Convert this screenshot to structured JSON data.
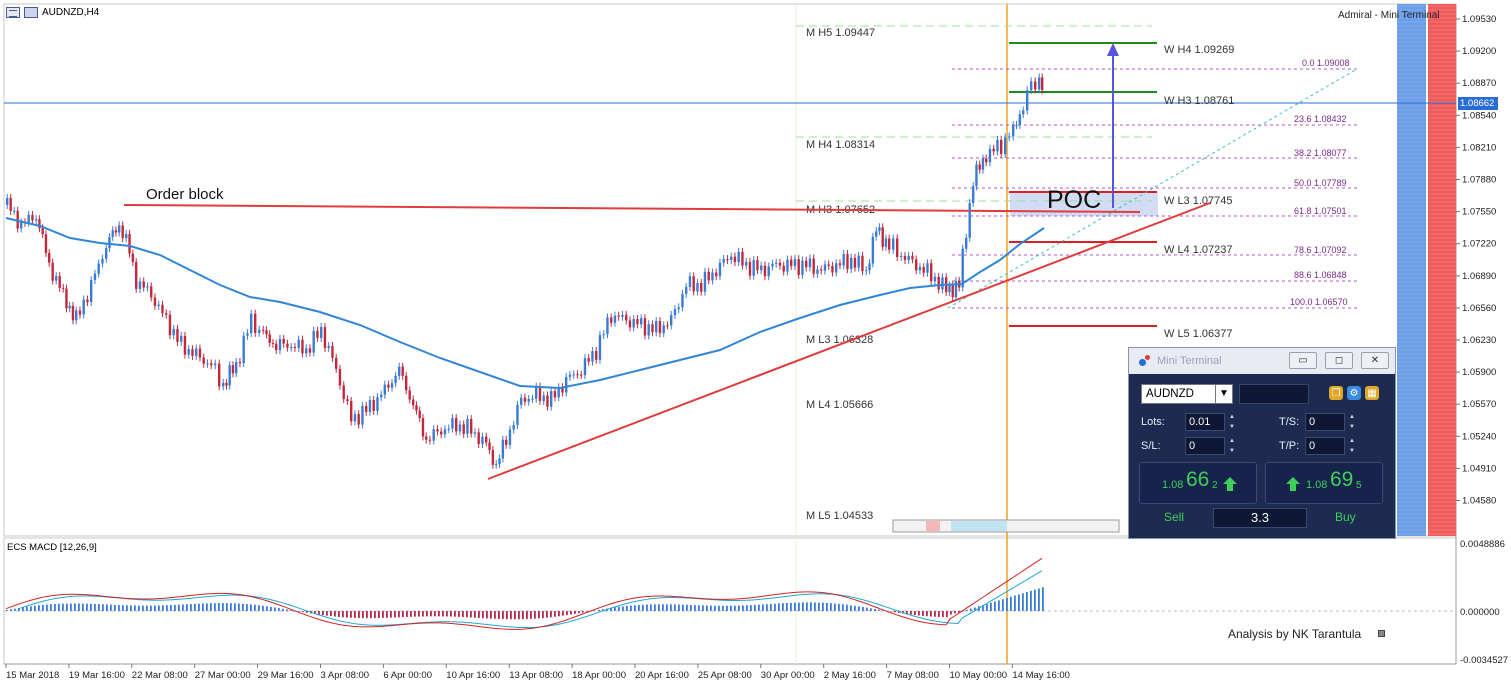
{
  "header": {
    "symbol_timeframe": "AUDNZD,H4",
    "broker": "Admiral - Mini Terminal"
  },
  "price_axis": {
    "labels": [
      "1.09530",
      "1.09200",
      "1.08870",
      "1.08540",
      "1.08210",
      "1.07880",
      "1.07550",
      "1.07220",
      "1.06890",
      "1.06560",
      "1.06230",
      "1.05900",
      "1.05570",
      "1.05240",
      "1.04910",
      "1.04580"
    ],
    "current_price": "1.08662"
  },
  "macd_axis": {
    "labels": [
      "0.0048886",
      "0.000000",
      "-0.0034527"
    ]
  },
  "time_axis": {
    "labels": [
      "15 Mar 2018",
      "19 Mar 16:00",
      "22 Mar 08:00",
      "27 Mar 00:00",
      "29 Mar 16:00",
      "3 Apr 08:00",
      "6 Apr 00:00",
      "10 Apr 16:00",
      "13 Apr 08:00",
      "18 Apr 00:00",
      "20 Apr 16:00",
      "25 Apr 08:00",
      "30 Apr 00:00",
      "2 May 16:00",
      "7 May 08:00",
      "10 May 00:00",
      "14 May 16:00"
    ]
  },
  "annotations": {
    "order_block": "Order block",
    "poc": "POC",
    "credit": "Analysis by NK Tarantula"
  },
  "monthly_pivots": [
    {
      "label": "M  H5 1.09447"
    },
    {
      "label": "M  H4 1.08314"
    },
    {
      "label": "M  H3 1.07652"
    },
    {
      "label": "M  L3 1.06328"
    },
    {
      "label": "M  L4 1.05666"
    },
    {
      "label": "M  L5 1.04533"
    }
  ],
  "weekly_pivots": [
    {
      "label": "W  H4 1.09269"
    },
    {
      "label": "W  H3 1.08761"
    },
    {
      "label": "W  L3 1.07745"
    },
    {
      "label": "W  L4 1.07237"
    },
    {
      "label": "W  L5 1.06377"
    }
  ],
  "fibonacci": [
    {
      "label": "0.0   1.09008"
    },
    {
      "label": "23.6   1.08432"
    },
    {
      "label": "38.2   1.08077"
    },
    {
      "label": "50.0   1.07789"
    },
    {
      "label": "61.8   1.07501"
    },
    {
      "label": "78.6   1.07092"
    },
    {
      "label": "88.6   1.06848"
    },
    {
      "label": "100.0   1.06570"
    }
  ],
  "indicator": {
    "name": "ECS MACD [12,26,9]"
  },
  "mini_terminal": {
    "title": "Mini Terminal",
    "symbol": "AUDNZD",
    "lots_label": "Lots:",
    "lots_value": "0.01",
    "sl_label": "S/L:",
    "sl_value": "0",
    "ts_label": "T/S:",
    "ts_value": "0",
    "tp_label": "T/P:",
    "tp_value": "0",
    "sell_price_prefix": "1.08",
    "sell_price_big": "66",
    "sell_price_sup": "2",
    "buy_price_prefix": "1.08",
    "buy_price_big": "69",
    "buy_price_sup": "5",
    "sell_label": "Sell",
    "buy_label": "Buy",
    "spread": "3.3"
  },
  "colors": {
    "up_candle": "#3a7bd5",
    "down_candle": "#c4283c",
    "moving_average": "#2f86d6",
    "trendline": "#e03c3c",
    "fib": "#a64ac9",
    "monthly_pivot": "#7fd37f",
    "weekly_resistance": "#1f8a1f",
    "weekly_support": "#e01c1c",
    "projection_arrow": "#5555dd",
    "signal_line": "#1fa7d6",
    "macd_line": "#d22222",
    "current_line": "#2a6cd6"
  }
}
